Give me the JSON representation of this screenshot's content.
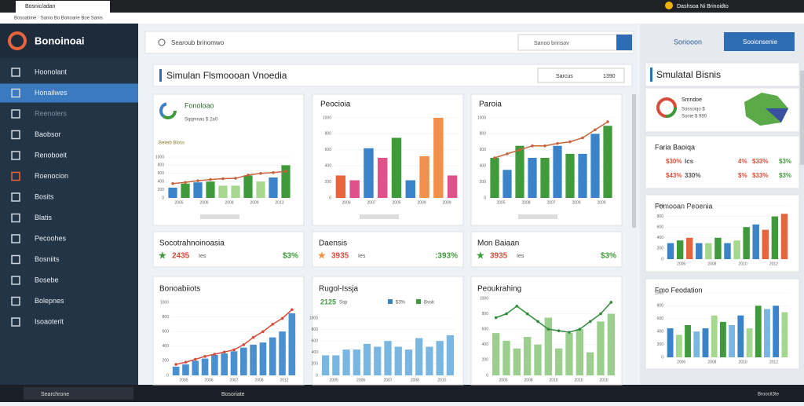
{
  "browser": {
    "tab": "Bosnic/adan",
    "address": "Bosoabine · Sanio Bo Bonoane Boe Sanis",
    "profile": "Dashsoa Ni Brinoidto"
  },
  "sidebar": {
    "logo": "Bonoinoai",
    "items": [
      "Hoonolant",
      "Honailwes",
      "Reenolers",
      "Baobsor",
      "Renoboeit",
      "Roenocion",
      "Bosits",
      "Blatis",
      "Pecoohes",
      "Bosniits",
      "Bosebe",
      "Bolepnes",
      "Isoaoterit"
    ]
  },
  "search": {
    "placeholder": "Searoub brinomwo",
    "secondary": "Sanoo brinsov",
    "action1": "Soriooon",
    "action2": "Sooionsenie"
  },
  "page_header": {
    "title": "Simulan Flsmoooan Vnoedia",
    "filter": "Sarcus",
    "count": "1390"
  },
  "row1": [
    {
      "title": "Fonoloao",
      "subtitle": "Sqqmnas $ 2a0",
      "legend": "Beleib Bloss",
      "chart": {
        "values": [
          250,
          350,
          380,
          400,
          300,
          300,
          550,
          400,
          500,
          800
        ],
        "colors": [
          "#3b83c8",
          "#3f9a3c",
          "#3b83c8",
          "#3f9a3c",
          "#a6d78f",
          "#a6d78f",
          "#3f9a3c",
          "#a6d78f",
          "#3b83c8",
          "#3f9a3c"
        ],
        "line": [
          350,
          380,
          420,
          450,
          470,
          480,
          560,
          600,
          620,
          650
        ],
        "line_color": "#c8643c",
        "ylim": [
          0,
          1000
        ],
        "yticks": [
          0,
          200,
          400,
          600,
          800,
          1000
        ],
        "x_labels": [
          "2005",
          "2006",
          "2008",
          "2009",
          "2013"
        ]
      }
    },
    {
      "title": "Peocioia",
      "chart": {
        "values": [
          280,
          220,
          620,
          500,
          750,
          220,
          520,
          1000,
          280
        ],
        "colors": [
          "#e8643c",
          "#e0508a",
          "#3b83c8",
          "#e0508a",
          "#3f9a3c",
          "#3b83c8",
          "#f0904a",
          "#f0904a",
          "#e0508a"
        ],
        "ylim": [
          0,
          1000
        ],
        "yticks": [
          0,
          200,
          400,
          600,
          800,
          1000
        ],
        "x_labels": [
          "2006",
          "2007",
          "2005",
          "2009",
          "2009"
        ]
      }
    },
    {
      "title": "Paroia",
      "chart": {
        "values": [
          500,
          350,
          650,
          500,
          500,
          650,
          550,
          550,
          800,
          900
        ],
        "colors": [
          "#3f9a3c",
          "#3b83c8",
          "#3f9a3c",
          "#3b83c8",
          "#3f9a3c",
          "#3b83c8",
          "#3f9a3c",
          "#3b83c8",
          "#3b83c8",
          "#3f9a3c"
        ],
        "line": [
          500,
          550,
          600,
          650,
          650,
          680,
          700,
          750,
          850,
          950
        ],
        "line_color": "#c8643c",
        "ylim": [
          0,
          1000
        ],
        "yticks": [
          0,
          200,
          400,
          600,
          800,
          1000
        ],
        "x_labels": [
          "2005",
          "2008",
          "2007",
          "2009",
          "2009"
        ]
      }
    }
  ],
  "kpis": [
    {
      "title": "Socotrahnoinoasia",
      "value": "2435",
      "unit": "Ies",
      "change": "$3%",
      "star": "#3f9a3c"
    },
    {
      "title": "Daensis",
      "value": "3935",
      "unit": "Ies",
      "change": ":393%",
      "star": "#f0904a"
    },
    {
      "title": "Mon Baiaan",
      "value": "3935",
      "unit": "Ies",
      "change": "$3%",
      "star": "#3f9a3c"
    }
  ],
  "row3": [
    {
      "title": "Bonoabiiots",
      "chart": {
        "values": [
          120,
          150,
          200,
          230,
          280,
          300,
          330,
          380,
          420,
          450,
          520,
          600,
          850
        ],
        "colors": [
          "#4a90d0"
        ],
        "line": [
          150,
          180,
          220,
          260,
          290,
          320,
          350,
          420,
          520,
          600,
          700,
          780,
          900
        ],
        "line_color": "#d94c3c",
        "ylim": [
          0,
          1000
        ],
        "yticks": [
          0,
          200,
          400,
          600,
          800,
          1000
        ],
        "x_labels": [
          "2005",
          "2006",
          "2007",
          "2008",
          "2012"
        ]
      }
    },
    {
      "title": "Rugol-Issja",
      "subtitle": "2125",
      "subunit": "Ssp",
      "legend": [
        "$3%",
        "Bssk"
      ],
      "chart": {
        "values": [
          350,
          350,
          450,
          450,
          550,
          500,
          600,
          500,
          450,
          650,
          500,
          600,
          700
        ],
        "colors": [
          "#7ab6e2"
        ],
        "ylim": [
          0,
          1000
        ],
        "yticks": [
          0,
          200,
          400,
          600,
          800,
          1000
        ],
        "x_labels": [
          "2005",
          "2006",
          "2007",
          "2008",
          "2010"
        ]
      }
    },
    {
      "title": "Peoukrahing",
      "chart": {
        "values": [
          550,
          450,
          350,
          500,
          400,
          750,
          350,
          550,
          600,
          300,
          700,
          800
        ],
        "colors": [
          "#9ccf8e"
        ],
        "line": [
          750,
          800,
          900,
          800,
          700,
          600,
          580,
          560,
          600,
          700,
          800,
          950
        ],
        "line_color": "#2f8a3a",
        "ylim": [
          0,
          1000
        ],
        "yticks": [
          0,
          200,
          400,
          600,
          800,
          1000
        ],
        "x_labels": [
          "2005",
          "2008",
          "2010",
          "2010",
          "2010"
        ]
      }
    }
  ],
  "right": {
    "title": "Smulatal Bisnis",
    "donut": {
      "title": "Smndoe",
      "lines": [
        "Sossoiqo $",
        "Sonie $ 990"
      ]
    },
    "kpi": {
      "title": "Faria Baoiqa",
      "rows": [
        [
          "$30%",
          "Ics",
          "4%",
          "$33%",
          "$3%"
        ],
        [
          "$43%",
          "330%",
          "$%",
          "$33%",
          "$3%"
        ]
      ]
    },
    "charts": [
      {
        "title": "Fomooan Peoenia",
        "chart": {
          "values": [
            300,
            350,
            400,
            300,
            300,
            400,
            300,
            350,
            600,
            650,
            550,
            800,
            850
          ],
          "colors": [
            "#3b83c8",
            "#3f9a3c",
            "#e8643c",
            "#3b83c8",
            "#a6d78f",
            "#3f9a3c",
            "#3b83c8",
            "#a6d78f",
            "#3f9a3c",
            "#3b83c8",
            "#e8643c",
            "#3f9a3c",
            "#e8643c"
          ],
          "ylim": [
            0,
            1000
          ],
          "yticks": [
            0,
            200,
            400,
            600,
            800,
            1000
          ],
          "x_labels": [
            "2006",
            "2008",
            "2010",
            "2012"
          ]
        }
      },
      {
        "title": "Fmo Feodation",
        "chart": {
          "values": [
            450,
            350,
            500,
            400,
            450,
            650,
            550,
            500,
            650,
            450,
            800,
            750,
            800,
            700
          ],
          "colors": [
            "#3b83c8",
            "#a6d78f",
            "#3f9a3c",
            "#7ab6e2"
          ],
          "ylim": [
            0,
            1000
          ],
          "yticks": [
            0,
            200,
            400,
            600,
            800,
            1000
          ],
          "x_labels": [
            "2006",
            "2008",
            "2010",
            "2012"
          ]
        }
      }
    ]
  },
  "taskbar": {
    "search": "Searchrone",
    "app": "Bosoriate",
    "time": "Broocit3te"
  }
}
